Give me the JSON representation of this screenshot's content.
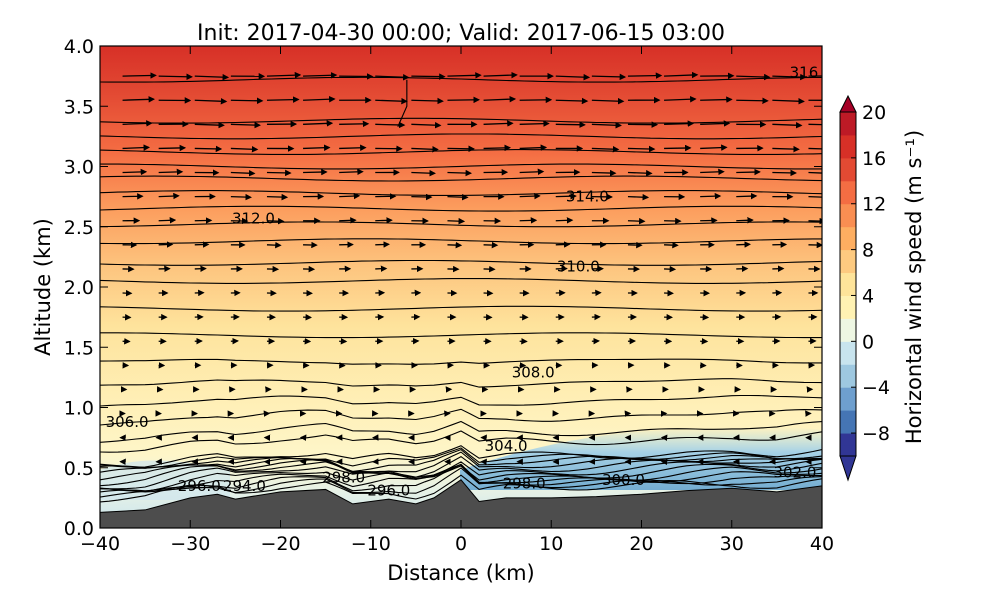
{
  "chart_data": {
    "type": "heatmap",
    "title": "Init: 2017-04-30 00:00; Valid: 2017-06-15 03:00",
    "xlabel": "Distance (km)",
    "ylabel": "Altitude (km)",
    "xlim": [
      -40,
      40
    ],
    "ylim": [
      0.0,
      4.0
    ],
    "x_ticks": [
      "−40",
      "−30",
      "−20",
      "−10",
      "0",
      "10",
      "20",
      "30",
      "40"
    ],
    "y_ticks": [
      "0.0",
      "0.5",
      "1.0",
      "1.5",
      "2.0",
      "2.5",
      "3.0",
      "3.5",
      "4.0"
    ],
    "colorbar": {
      "label": "Horizontal wind speed (m s⁻¹)",
      "range": [
        -10,
        20
      ],
      "step": 1,
      "ticks": [
        "20",
        "16",
        "12",
        "8",
        "4",
        "0",
        "−4",
        "−8"
      ],
      "extend": "both",
      "colormap": "RdYlBu_r"
    },
    "field_summary": {
      "wind_speed_by_altitude": [
        {
          "altitude_km": 0.3,
          "speed": -3
        },
        {
          "altitude_km": 0.5,
          "speed": -1
        },
        {
          "altitude_km": 0.8,
          "speed": 0
        },
        {
          "altitude_km": 1.0,
          "speed": 1
        },
        {
          "altitude_km": 1.5,
          "speed": 3
        },
        {
          "altitude_km": 2.0,
          "speed": 4
        },
        {
          "altitude_km": 2.5,
          "speed": 7
        },
        {
          "altitude_km": 3.0,
          "speed": 11
        },
        {
          "altitude_km": 3.5,
          "speed": 14
        },
        {
          "altitude_km": 4.0,
          "speed": 16
        }
      ],
      "negative_pocket": {
        "x_range_km": [
          0,
          40
        ],
        "altitude_range_km": [
          0.35,
          0.75
        ],
        "min_speed": -6
      }
    },
    "contour_labels": [
      {
        "text": "316",
        "x_km": 38.0,
        "alt_km": 3.78
      },
      {
        "text": "314.0",
        "x_km": 14.0,
        "alt_km": 2.75
      },
      {
        "text": "312.0",
        "x_km": -23.0,
        "alt_km": 2.57
      },
      {
        "text": "310.0",
        "x_km": 13.0,
        "alt_km": 2.17
      },
      {
        "text": "308.0",
        "x_km": 8.0,
        "alt_km": 1.29
      },
      {
        "text": "306.0",
        "x_km": -37.0,
        "alt_km": 0.88
      },
      {
        "text": "304.0",
        "x_km": 5.0,
        "alt_km": 0.68
      },
      {
        "text": "302.0",
        "x_km": 37.0,
        "alt_km": 0.46
      },
      {
        "text": "300.0",
        "x_km": 18.0,
        "alt_km": 0.4
      },
      {
        "text": "298.0",
        "x_km": 7.0,
        "alt_km": 0.37
      },
      {
        "text": "298.0",
        "x_km": -13.0,
        "alt_km": 0.42
      },
      {
        "text": "296.0",
        "x_km": -29.0,
        "alt_km": 0.35
      },
      {
        "text": "294.0",
        "x_km": -24.0,
        "alt_km": 0.35
      },
      {
        "text": "296.0",
        "x_km": -8.0,
        "alt_km": 0.31
      }
    ],
    "terrain": {
      "x_km": [
        -40,
        -35,
        -30,
        -27,
        -25,
        -20,
        -15,
        -12,
        -8,
        -5,
        -3,
        0,
        2,
        5,
        10,
        15,
        20,
        25,
        30,
        35,
        40
      ],
      "alt_km": [
        0.13,
        0.15,
        0.25,
        0.28,
        0.24,
        0.3,
        0.32,
        0.2,
        0.24,
        0.2,
        0.25,
        0.4,
        0.22,
        0.25,
        0.25,
        0.26,
        0.28,
        0.31,
        0.33,
        0.3,
        0.35
      ]
    },
    "grid": false
  }
}
